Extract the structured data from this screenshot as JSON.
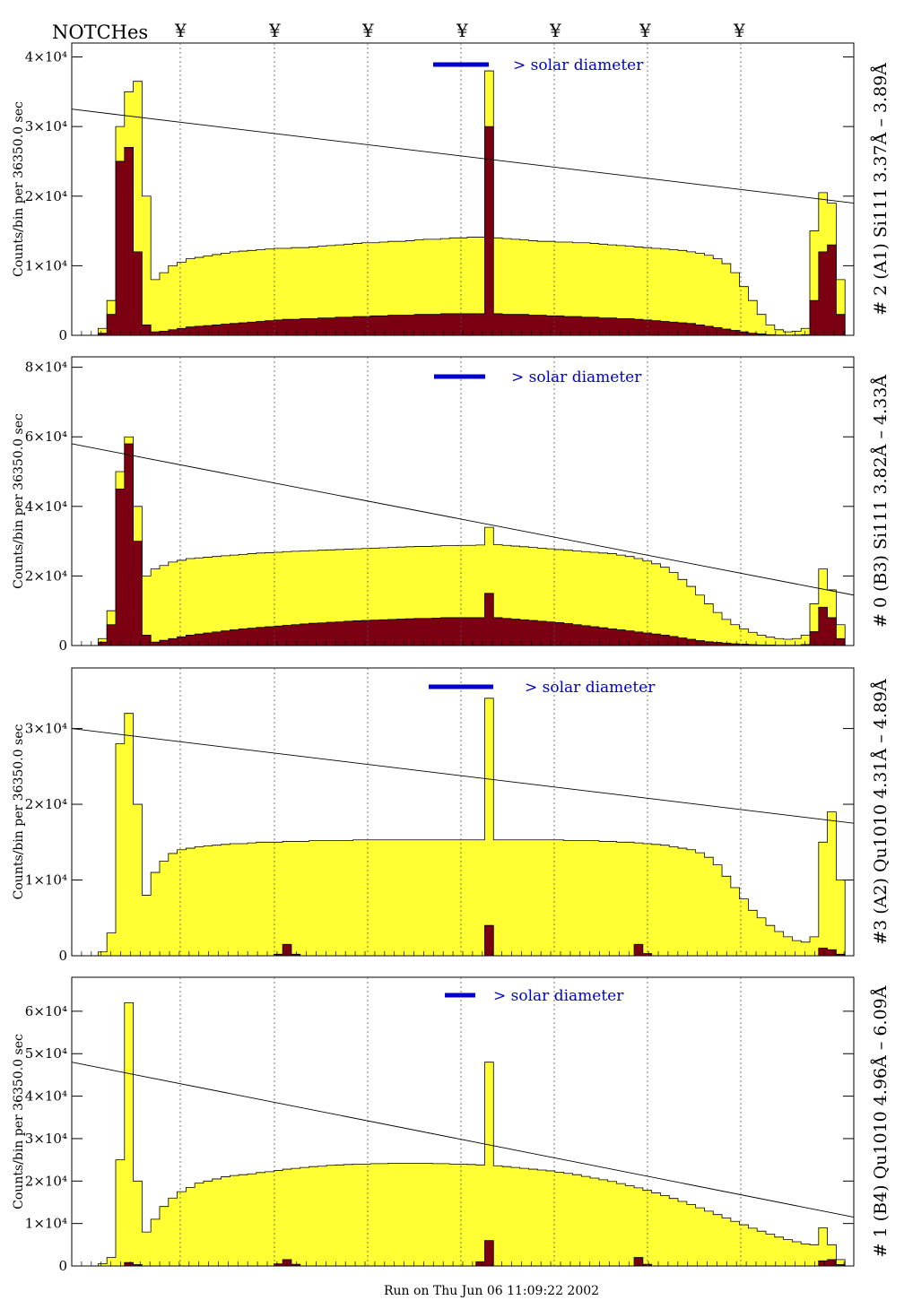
{
  "header": {
    "notches_label": "NOTCHes",
    "notch_marks": [
      "¥",
      "¥",
      "¥",
      "¥",
      "¥",
      "¥",
      "¥"
    ]
  },
  "footer": {
    "run_text": "Run on Thu Jun 06 11:09:22 2002"
  },
  "colors": {
    "fill": "#ffff33",
    "dark": "#7a0012",
    "legend": "#0000cc",
    "line": "#000000"
  },
  "chart_data": [
    {
      "type": "area",
      "title": "# 2 (A1) Si111  3.37Å – 3.89Å",
      "ylabel": "Counts/bin per  36350.0 sec",
      "ylim": [
        0,
        42000
      ],
      "yticks": [
        0,
        10000,
        20000,
        30000,
        40000
      ],
      "ytick_labels": [
        "0",
        "1×10⁴",
        "2×10⁴",
        "3×10⁴",
        "4×10⁴"
      ],
      "legend": "> solar diameter",
      "notch_lines": true,
      "trend": [
        32500,
        19000
      ],
      "series": [
        {
          "values": [
            0,
            0,
            0,
            1000,
            5000,
            30000,
            35000,
            36500,
            20000,
            8000,
            9000,
            10000,
            10500,
            11000,
            11200,
            11400,
            11600,
            11800,
            12000,
            12100,
            12200,
            12300,
            12400,
            12500,
            12500,
            12600,
            12600,
            12700,
            12800,
            12900,
            13000,
            13100,
            13200,
            13300,
            13300,
            13400,
            13500,
            13500,
            13600,
            13700,
            13800,
            13800,
            13900,
            14000,
            14000,
            14100,
            14100,
            38000,
            14000,
            13900,
            13800,
            13700,
            13600,
            13500,
            13500,
            13400,
            13400,
            13300,
            13300,
            13200,
            13100,
            13000,
            12900,
            12800,
            12700,
            12600,
            12500,
            12400,
            12300,
            12200,
            12000,
            11800,
            11500,
            11000,
            10300,
            9000,
            7000,
            5000,
            3000,
            1500,
            800,
            500,
            600,
            1000,
            15000,
            20500,
            19000,
            8000,
            0
          ]
        },
        {
          "values": [
            0,
            0,
            0,
            300,
            3000,
            25000,
            27000,
            12000,
            1500,
            500,
            600,
            800,
            1000,
            1200,
            1300,
            1400,
            1500,
            1600,
            1700,
            1800,
            1900,
            2000,
            2100,
            2200,
            2300,
            2300,
            2400,
            2400,
            2500,
            2500,
            2600,
            2600,
            2700,
            2700,
            2800,
            2800,
            2900,
            2900,
            2900,
            3000,
            3000,
            3000,
            3100,
            3100,
            3100,
            3100,
            3100,
            30000,
            3100,
            3000,
            3000,
            3000,
            2900,
            2900,
            2800,
            2800,
            2700,
            2700,
            2600,
            2600,
            2500,
            2500,
            2400,
            2400,
            2300,
            2200,
            2100,
            2000,
            1900,
            1800,
            1700,
            1500,
            1300,
            1100,
            900,
            700,
            500,
            300,
            200,
            100,
            50,
            30,
            40,
            100,
            5000,
            12000,
            13000,
            3000,
            0
          ]
        }
      ]
    },
    {
      "type": "area",
      "title": "# 0 (B3) Si111  3.82Å – 4.33Å",
      "ylabel": "Counts/bin per  36350.0 sec",
      "ylim": [
        0,
        83000
      ],
      "yticks": [
        0,
        20000,
        40000,
        60000,
        80000
      ],
      "ytick_labels": [
        "0",
        "2×10⁴",
        "4×10⁴",
        "6×10⁴",
        "8×10⁴"
      ],
      "legend": "> solar diameter",
      "notch_lines": true,
      "trend": [
        58000,
        14500
      ],
      "series": [
        {
          "values": [
            0,
            0,
            0,
            2000,
            10000,
            50000,
            60000,
            40000,
            20000,
            22000,
            23000,
            24000,
            24500,
            25000,
            25200,
            25400,
            25600,
            25800,
            26000,
            26200,
            26400,
            26600,
            26700,
            26800,
            27000,
            27100,
            27200,
            27300,
            27400,
            27500,
            27600,
            27700,
            27800,
            27900,
            28000,
            28100,
            28200,
            28300,
            28400,
            28500,
            28500,
            28600,
            28700,
            28700,
            28800,
            28800,
            28900,
            34000,
            29000,
            28800,
            28600,
            28400,
            28200,
            28000,
            27800,
            27600,
            27400,
            27200,
            27000,
            26800,
            26600,
            26400,
            26000,
            25600,
            25000,
            24300,
            23500,
            22500,
            21000,
            19000,
            17000,
            14500,
            12000,
            9500,
            7500,
            6000,
            4800,
            3800,
            3000,
            2400,
            2000,
            1800,
            2000,
            3000,
            12000,
            22000,
            16000,
            6000,
            0
          ]
        },
        {
          "values": [
            0,
            0,
            0,
            1000,
            6000,
            45000,
            58000,
            30000,
            3000,
            1000,
            1500,
            2000,
            2500,
            3000,
            3300,
            3600,
            3900,
            4200,
            4500,
            4800,
            5000,
            5200,
            5400,
            5600,
            5800,
            6000,
            6200,
            6400,
            6500,
            6700,
            6800,
            7000,
            7100,
            7200,
            7300,
            7400,
            7500,
            7600,
            7700,
            7800,
            7800,
            7900,
            8000,
            8000,
            8000,
            8000,
            8000,
            15000,
            8000,
            7800,
            7600,
            7400,
            7200,
            7000,
            6800,
            6600,
            6300,
            6000,
            5700,
            5400,
            5100,
            4800,
            4500,
            4200,
            3900,
            3600,
            3300,
            3000,
            2600,
            2200,
            1800,
            1400,
            1100,
            900,
            700,
            500,
            400,
            300,
            200,
            150,
            100,
            80,
            100,
            300,
            4000,
            11000,
            8000,
            2000,
            0
          ]
        }
      ]
    },
    {
      "type": "area",
      "title": "#3 (A2) Qu1010  4.31Å – 4.89Å",
      "ylabel": "Counts/bin per  36350.0 sec",
      "ylim": [
        0,
        38000
      ],
      "yticks": [
        0,
        10000,
        20000,
        30000
      ],
      "ytick_labels": [
        "0",
        "1×10⁴",
        "2×10⁴",
        "3×10⁴"
      ],
      "legend": "> solar diameter",
      "notch_lines": true,
      "trend": [
        30000,
        17500
      ],
      "series": [
        {
          "values": [
            0,
            0,
            0,
            500,
            3000,
            28000,
            32000,
            20000,
            8000,
            11000,
            12500,
            13500,
            14000,
            14200,
            14400,
            14500,
            14600,
            14700,
            14800,
            14800,
            14900,
            15000,
            15000,
            15000,
            15100,
            15100,
            15100,
            15200,
            15200,
            15200,
            15200,
            15200,
            15300,
            15300,
            15300,
            15300,
            15300,
            15300,
            15300,
            15300,
            15300,
            15300,
            15300,
            15300,
            15300,
            15300,
            15300,
            34000,
            15300,
            15300,
            15300,
            15300,
            15300,
            15300,
            15300,
            15300,
            15200,
            15200,
            15200,
            15200,
            15100,
            15100,
            15000,
            15000,
            14900,
            14800,
            14700,
            14600,
            14400,
            14200,
            14000,
            13600,
            13000,
            12000,
            10500,
            9000,
            7500,
            6000,
            5000,
            4000,
            3200,
            2500,
            2000,
            1800,
            2500,
            15000,
            19000,
            10000,
            0
          ]
        },
        {
          "values": [
            0,
            0,
            0,
            0,
            0,
            0,
            0,
            0,
            0,
            0,
            0,
            0,
            0,
            0,
            0,
            0,
            0,
            0,
            0,
            0,
            0,
            0,
            0,
            200,
            1500,
            200,
            0,
            0,
            0,
            0,
            0,
            0,
            0,
            0,
            0,
            0,
            0,
            0,
            0,
            0,
            0,
            0,
            0,
            0,
            0,
            0,
            0,
            4000,
            0,
            0,
            0,
            0,
            0,
            0,
            0,
            0,
            0,
            0,
            0,
            0,
            0,
            0,
            0,
            0,
            1500,
            300,
            0,
            0,
            0,
            0,
            0,
            0,
            0,
            0,
            0,
            0,
            0,
            0,
            0,
            0,
            0,
            0,
            0,
            0,
            0,
            1000,
            800,
            200,
            0
          ]
        }
      ]
    },
    {
      "type": "area",
      "title": "# 1 (B4) Qu1010 4.96Å – 6.09Å",
      "ylabel": "Counts/bin per  36350.0 sec",
      "ylim": [
        0,
        68000
      ],
      "yticks": [
        0,
        10000,
        20000,
        30000,
        40000,
        50000,
        60000
      ],
      "ytick_labels": [
        "0",
        "1×10⁴",
        "2×10⁴",
        "3×10⁴",
        "4×10⁴",
        "5×10⁴",
        "6×10⁴"
      ],
      "legend": "> solar diameter",
      "notch_lines": true,
      "trend": [
        48000,
        11500
      ],
      "series": [
        {
          "values": [
            0,
            0,
            0,
            500,
            2000,
            25000,
            62000,
            20000,
            8000,
            11000,
            14000,
            16000,
            17500,
            18500,
            19500,
            20000,
            20500,
            21000,
            21300,
            21500,
            21700,
            22000,
            22200,
            22500,
            22800,
            23000,
            23200,
            23400,
            23500,
            23700,
            23800,
            23900,
            24000,
            24000,
            24100,
            24100,
            24200,
            24200,
            24200,
            24200,
            24200,
            24100,
            24100,
            24000,
            24000,
            23900,
            23800,
            48000,
            23600,
            23400,
            23200,
            23000,
            22800,
            22600,
            22400,
            22100,
            21800,
            21500,
            21100,
            20700,
            20300,
            19900,
            19400,
            18900,
            18400,
            17800,
            17200,
            16600,
            15900,
            15200,
            14500,
            13700,
            12900,
            12100,
            11300,
            10500,
            9700,
            8900,
            8200,
            7500,
            6800,
            6200,
            5700,
            5200,
            5000,
            9000,
            5000,
            1500,
            0
          ]
        },
        {
          "values": [
            0,
            0,
            0,
            0,
            0,
            0,
            800,
            300,
            0,
            0,
            0,
            0,
            0,
            0,
            0,
            0,
            0,
            0,
            0,
            0,
            0,
            0,
            0,
            500,
            1500,
            400,
            0,
            0,
            0,
            0,
            0,
            0,
            0,
            0,
            0,
            0,
            0,
            0,
            0,
            0,
            0,
            0,
            0,
            0,
            0,
            0,
            1000,
            6000,
            0,
            0,
            0,
            0,
            0,
            0,
            0,
            0,
            0,
            0,
            0,
            0,
            0,
            0,
            0,
            0,
            2000,
            400,
            0,
            0,
            0,
            0,
            0,
            0,
            0,
            0,
            0,
            0,
            0,
            0,
            0,
            0,
            0,
            0,
            0,
            0,
            0,
            1200,
            1500,
            300,
            0
          ]
        }
      ]
    }
  ]
}
